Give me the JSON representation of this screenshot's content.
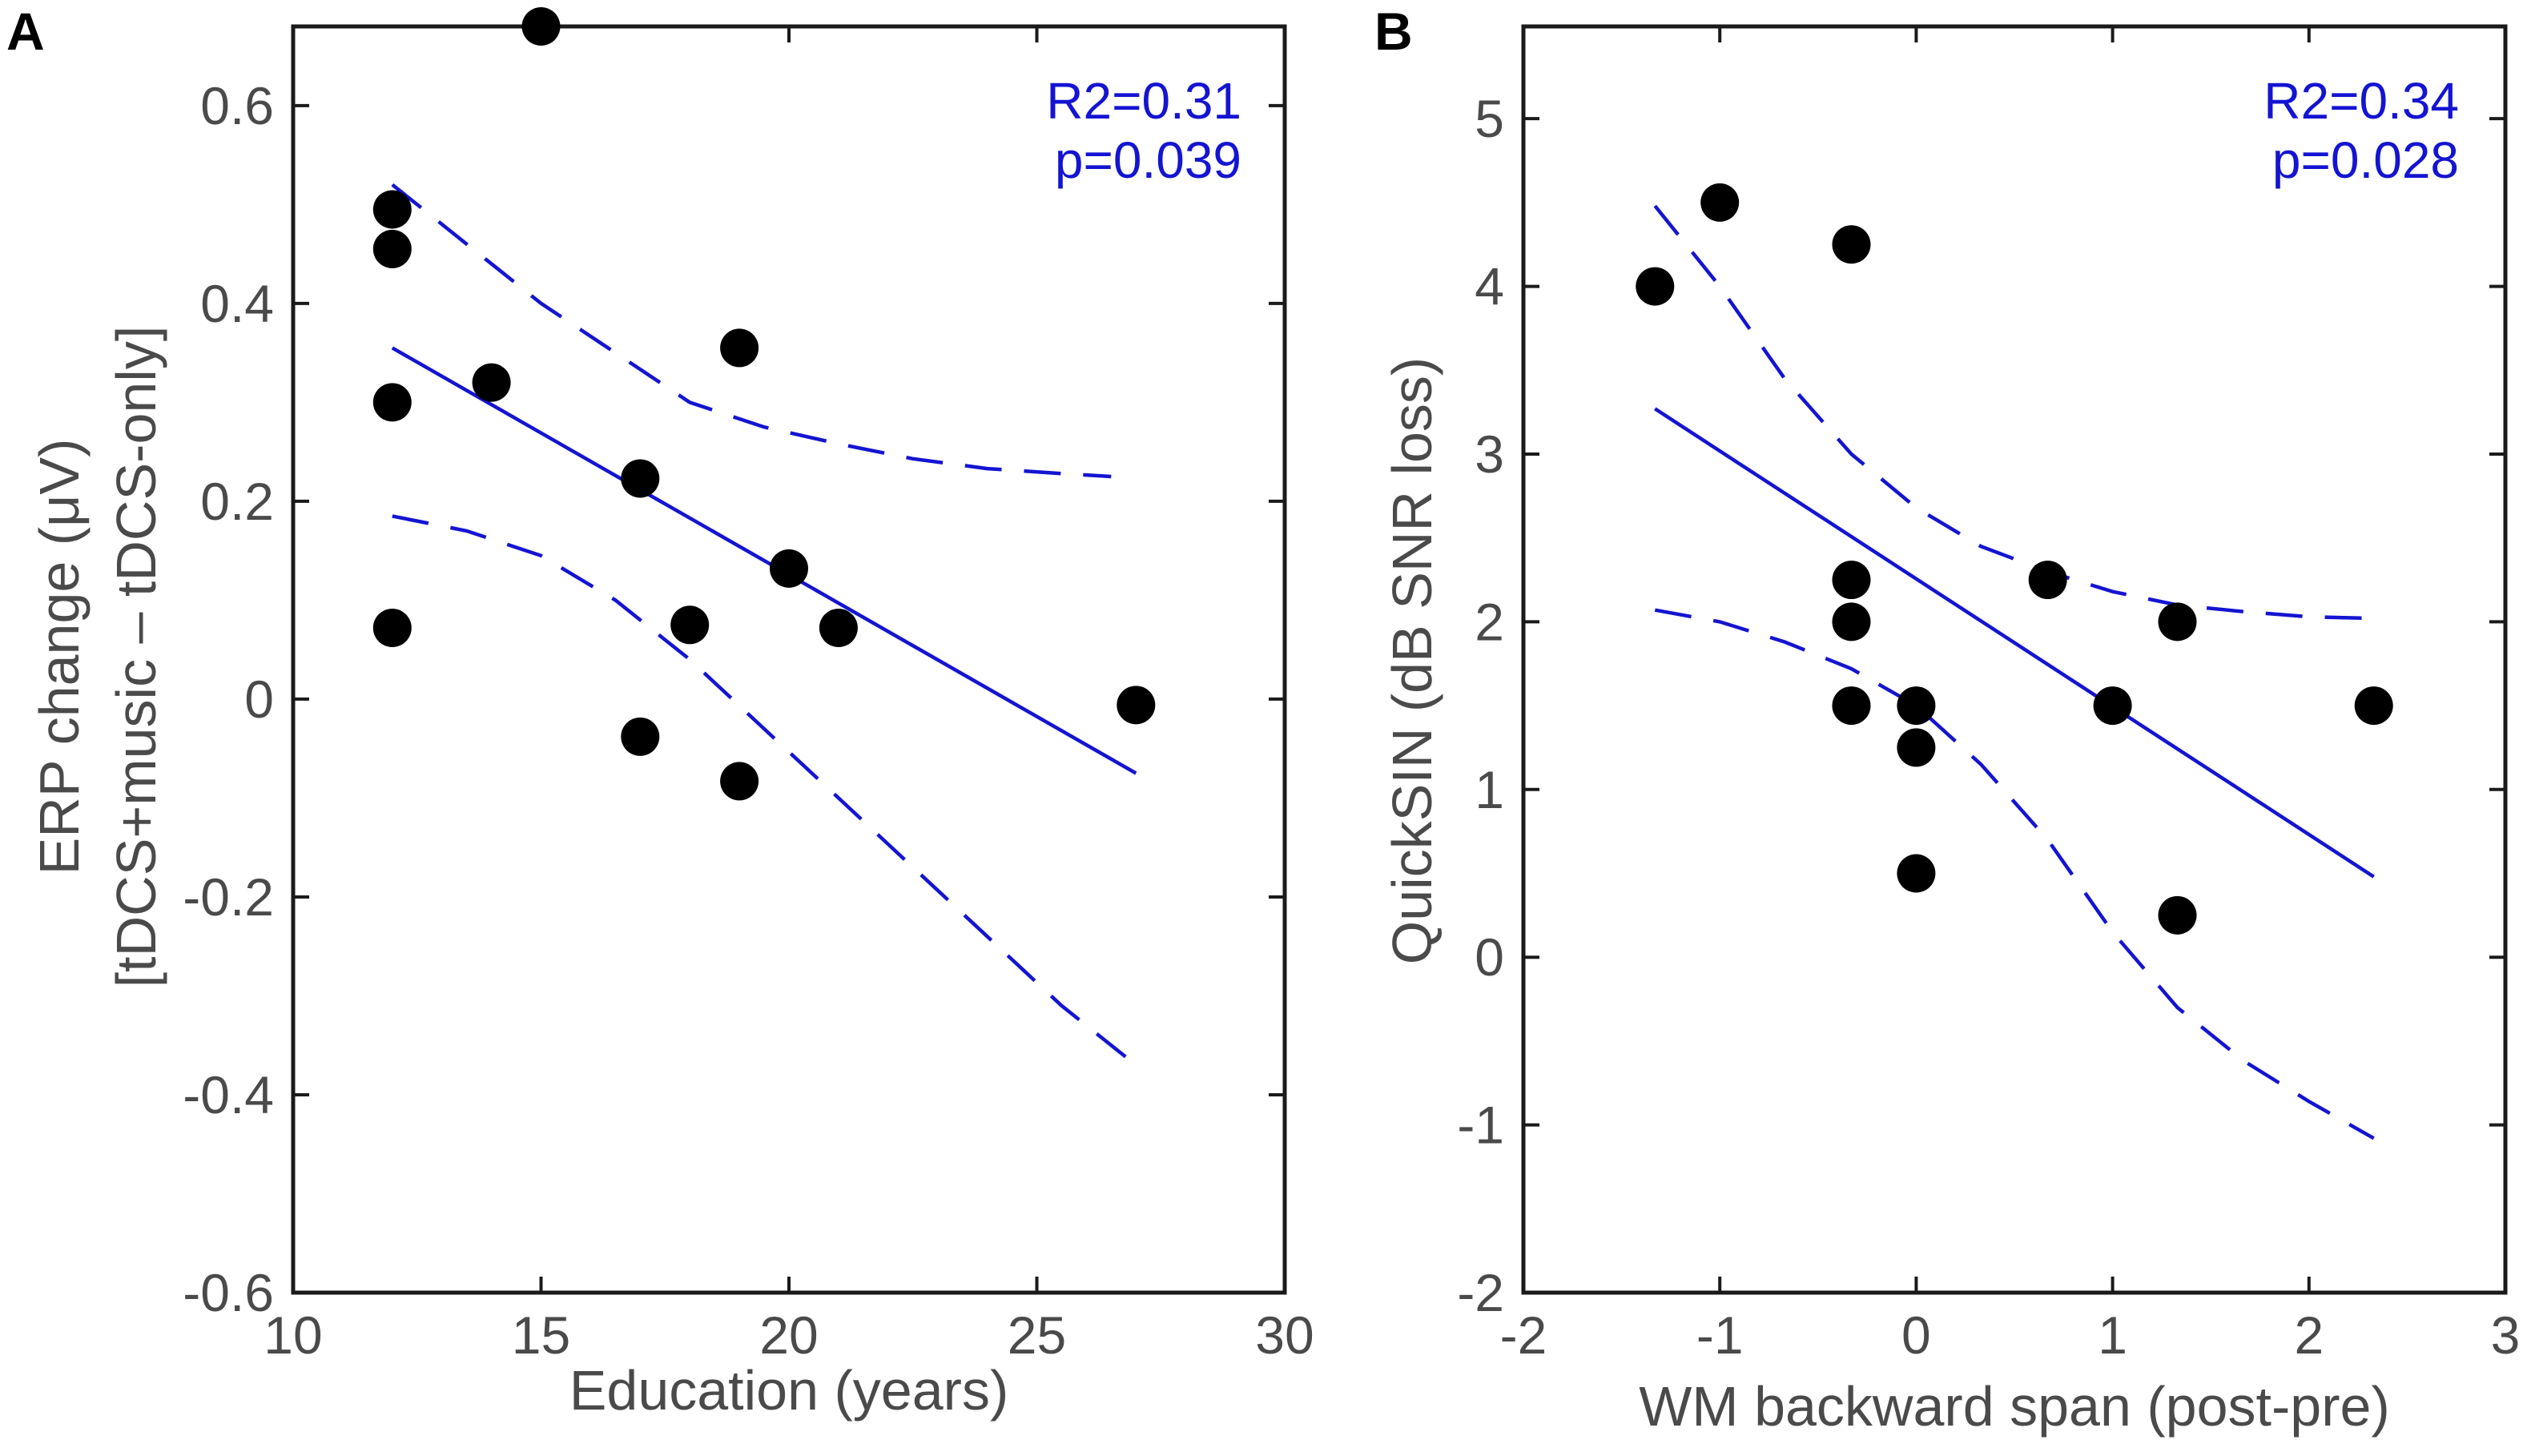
{
  "colors": {
    "points": "#000000",
    "fit": "#1414d2",
    "stats": "#1414d2"
  },
  "chart_data": [
    {
      "type": "scatter",
      "panel_label": "A",
      "xlabel": "Education (years)",
      "ylabel": [
        "ERP change (μV)",
        "[tDCS+music – tDCS-only]"
      ],
      "xlim": [
        10,
        30
      ],
      "ylim": [
        -0.6,
        0.68
      ],
      "xticks": [
        10,
        15,
        20,
        25,
        30
      ],
      "xtick_labels": [
        "10",
        "15",
        "20",
        "25",
        "30"
      ],
      "yticks": [
        -0.6,
        -0.4,
        -0.2,
        0,
        0.2,
        0.4,
        0.6
      ],
      "ytick_labels": [
        "-0.6",
        "-0.4",
        "-0.2",
        "0",
        "0.2",
        "0.4",
        "0.6"
      ],
      "stats": [
        "R2=0.31",
        "p=0.039"
      ],
      "points": [
        {
          "x": 12,
          "y": 0.495
        },
        {
          "x": 12,
          "y": 0.455
        },
        {
          "x": 12,
          "y": 0.3
        },
        {
          "x": 12,
          "y": 0.072
        },
        {
          "x": 14,
          "y": 0.32
        },
        {
          "x": 15,
          "y": 0.68
        },
        {
          "x": 17,
          "y": 0.223
        },
        {
          "x": 17,
          "y": -0.038
        },
        {
          "x": 18,
          "y": 0.075
        },
        {
          "x": 19,
          "y": 0.355
        },
        {
          "x": 19,
          "y": -0.083
        },
        {
          "x": 20,
          "y": 0.132
        },
        {
          "x": 21,
          "y": 0.072
        },
        {
          "x": 27,
          "y": -0.006
        }
      ],
      "fit": [
        {
          "x": 12,
          "y": 0.355
        },
        {
          "x": 27,
          "y": -0.075
        }
      ],
      "ci_upper": [
        {
          "x": 12,
          "y": 0.52
        },
        {
          "x": 13.5,
          "y": 0.46
        },
        {
          "x": 15,
          "y": 0.4
        },
        {
          "x": 16.5,
          "y": 0.35
        },
        {
          "x": 18,
          "y": 0.3
        },
        {
          "x": 19.5,
          "y": 0.275
        },
        {
          "x": 21,
          "y": 0.258
        },
        {
          "x": 22.5,
          "y": 0.243
        },
        {
          "x": 24,
          "y": 0.233
        },
        {
          "x": 25.5,
          "y": 0.228
        },
        {
          "x": 26.5,
          "y": 0.225
        }
      ],
      "ci_lower": [
        {
          "x": 12,
          "y": 0.185
        },
        {
          "x": 13.5,
          "y": 0.17
        },
        {
          "x": 15,
          "y": 0.145
        },
        {
          "x": 16.5,
          "y": 0.1
        },
        {
          "x": 18,
          "y": 0.04
        },
        {
          "x": 19.5,
          "y": -0.03
        },
        {
          "x": 21,
          "y": -0.1
        },
        {
          "x": 22.5,
          "y": -0.17
        },
        {
          "x": 24,
          "y": -0.24
        },
        {
          "x": 25.5,
          "y": -0.31
        },
        {
          "x": 27,
          "y": -0.37
        }
      ]
    },
    {
      "type": "scatter",
      "panel_label": "B",
      "xlabel": "WM backward span (post-pre)",
      "ylabel": [
        "QuickSIN (dB SNR loss)"
      ],
      "xlim": [
        -2,
        3
      ],
      "ylim": [
        -2,
        5.55
      ],
      "xticks": [
        -2,
        -1,
        0,
        1,
        2,
        3
      ],
      "xtick_labels": [
        "-2",
        "-1",
        "0",
        "1",
        "2",
        "3"
      ],
      "yticks": [
        -2,
        -1,
        0,
        1,
        2,
        3,
        4,
        5
      ],
      "ytick_labels": [
        "-2",
        "-1",
        "0",
        "1",
        "2",
        "3",
        "4",
        "5"
      ],
      "stats": [
        "R2=0.34",
        "p=0.028"
      ],
      "points": [
        {
          "x": -1.33,
          "y": 4.0
        },
        {
          "x": -1.0,
          "y": 4.5
        },
        {
          "x": -0.33,
          "y": 4.25
        },
        {
          "x": -0.33,
          "y": 2.25
        },
        {
          "x": -0.33,
          "y": 2.0
        },
        {
          "x": -0.33,
          "y": 1.5
        },
        {
          "x": 0,
          "y": 1.5
        },
        {
          "x": 0,
          "y": 1.25
        },
        {
          "x": 0,
          "y": 0.5
        },
        {
          "x": 0.67,
          "y": 2.25
        },
        {
          "x": 1.0,
          "y": 1.5
        },
        {
          "x": 1.33,
          "y": 2.0
        },
        {
          "x": 1.33,
          "y": 0.25
        },
        {
          "x": 2.33,
          "y": 1.5
        }
      ],
      "fit": [
        {
          "x": -1.33,
          "y": 3.27
        },
        {
          "x": 2.33,
          "y": 0.48
        }
      ],
      "ci_upper": [
        {
          "x": -1.33,
          "y": 4.48
        },
        {
          "x": -1.0,
          "y": 4.0
        },
        {
          "x": -0.67,
          "y": 3.45
        },
        {
          "x": -0.33,
          "y": 3.0
        },
        {
          "x": 0,
          "y": 2.68
        },
        {
          "x": 0.33,
          "y": 2.45
        },
        {
          "x": 0.67,
          "y": 2.3
        },
        {
          "x": 1.0,
          "y": 2.18
        },
        {
          "x": 1.33,
          "y": 2.1
        },
        {
          "x": 1.67,
          "y": 2.06
        },
        {
          "x": 2.0,
          "y": 2.03
        },
        {
          "x": 2.33,
          "y": 2.02
        }
      ],
      "ci_lower": [
        {
          "x": -1.33,
          "y": 2.07
        },
        {
          "x": -1.0,
          "y": 2.0
        },
        {
          "x": -0.67,
          "y": 1.88
        },
        {
          "x": -0.33,
          "y": 1.72
        },
        {
          "x": 0,
          "y": 1.5
        },
        {
          "x": 0.33,
          "y": 1.15
        },
        {
          "x": 0.67,
          "y": 0.7
        },
        {
          "x": 1.0,
          "y": 0.15
        },
        {
          "x": 1.33,
          "y": -0.3
        },
        {
          "x": 1.67,
          "y": -0.62
        },
        {
          "x": 2.0,
          "y": -0.86
        },
        {
          "x": 2.33,
          "y": -1.08
        }
      ]
    }
  ]
}
